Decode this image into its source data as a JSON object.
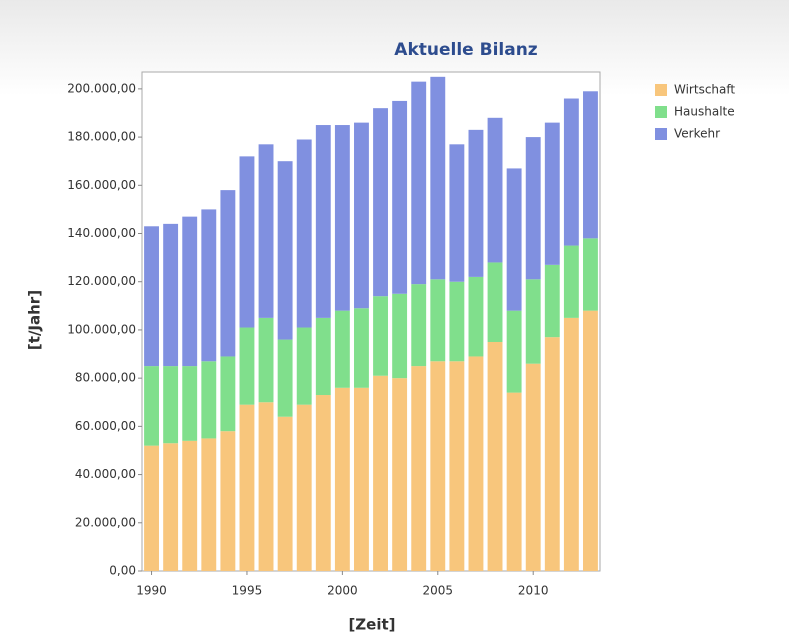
{
  "chart_data": {
    "type": "stacked_bar",
    "title": "Aktuelle Bilanz",
    "x_label": "[Zeit]",
    "y_label": "[t/Jahr]",
    "x": [
      1990,
      1991,
      1992,
      1993,
      1994,
      1995,
      1996,
      1997,
      1998,
      1999,
      2000,
      2001,
      2002,
      2003,
      2004,
      2005,
      2006,
      2007,
      2008,
      2009,
      2010,
      2011,
      2012,
      2013
    ],
    "xlim": [
      1989.5,
      2013.5
    ],
    "xticks": [
      1990,
      1995,
      2000,
      2005,
      2010
    ],
    "ylim": [
      0,
      207000
    ],
    "yticks": [
      {
        "value": 0,
        "label": "0,00"
      },
      {
        "value": 20000,
        "label": "20.000,00"
      },
      {
        "value": 40000,
        "label": "40.000,00"
      },
      {
        "value": 60000,
        "label": "60.000,00"
      },
      {
        "value": 80000,
        "label": "80.000,00"
      },
      {
        "value": 100000,
        "label": "100.000,00"
      },
      {
        "value": 120000,
        "label": "120.000,00"
      },
      {
        "value": 140000,
        "label": "140.000,00"
      },
      {
        "value": 160000,
        "label": "160.000,00"
      },
      {
        "value": 180000,
        "label": "180.000,00"
      },
      {
        "value": 200000,
        "label": "200.000,00"
      }
    ],
    "grid": false,
    "legend": "right",
    "series": [
      {
        "name": "Wirtschaft",
        "color": "#f8c67c",
        "values": [
          52000,
          53000,
          54000,
          55000,
          58000,
          69000,
          70000,
          64000,
          69000,
          73000,
          76000,
          76000,
          81000,
          80000,
          85000,
          87000,
          87000,
          89000,
          95000,
          74000,
          86000,
          97000,
          105000,
          108000
        ]
      },
      {
        "name": "Haushalte",
        "color": "#80df8c",
        "values": [
          33000,
          32000,
          31000,
          32000,
          31000,
          32000,
          35000,
          32000,
          32000,
          32000,
          32000,
          33000,
          33000,
          35000,
          34000,
          34000,
          33000,
          33000,
          33000,
          34000,
          35000,
          30000,
          30000,
          30000
        ]
      },
      {
        "name": "Verkehr",
        "color": "#8090e0",
        "values": [
          58000,
          59000,
          62000,
          63000,
          69000,
          71000,
          72000,
          74000,
          78000,
          80000,
          77000,
          77000,
          78000,
          80000,
          84000,
          84000,
          57000,
          61000,
          60000,
          59000,
          59000,
          59000,
          61000,
          61000
        ]
      }
    ]
  }
}
